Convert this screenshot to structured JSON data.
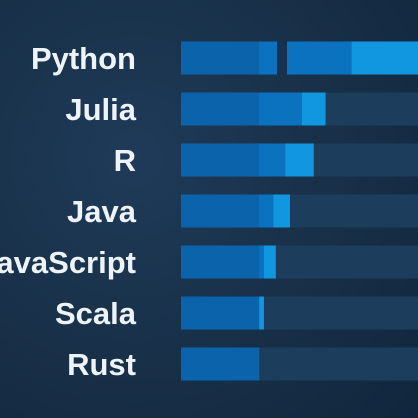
{
  "chart_data": {
    "type": "bar",
    "categories": [
      "Python",
      "Julia",
      "R",
      "Java",
      "avaScript",
      "Scala",
      "Rust"
    ],
    "series": [
      {
        "values": [
          100,
          61,
          56,
          46,
          40,
          35,
          30
        ]
      },
      {
        "values": [
          72,
          51,
          44,
          39,
          35,
          30,
          26
        ]
      },
      {
        "values": [
          33,
          33,
          33,
          33,
          33,
          33,
          33
        ]
      }
    ],
    "colors": {
      "background": "#17304a",
      "track": "#1c3d5b",
      "main": "#1197df",
      "secondary": "#0a72bf",
      "base": "#0b64ab",
      "gap": "#163250"
    },
    "ylim": [
      0,
      100
    ]
  }
}
